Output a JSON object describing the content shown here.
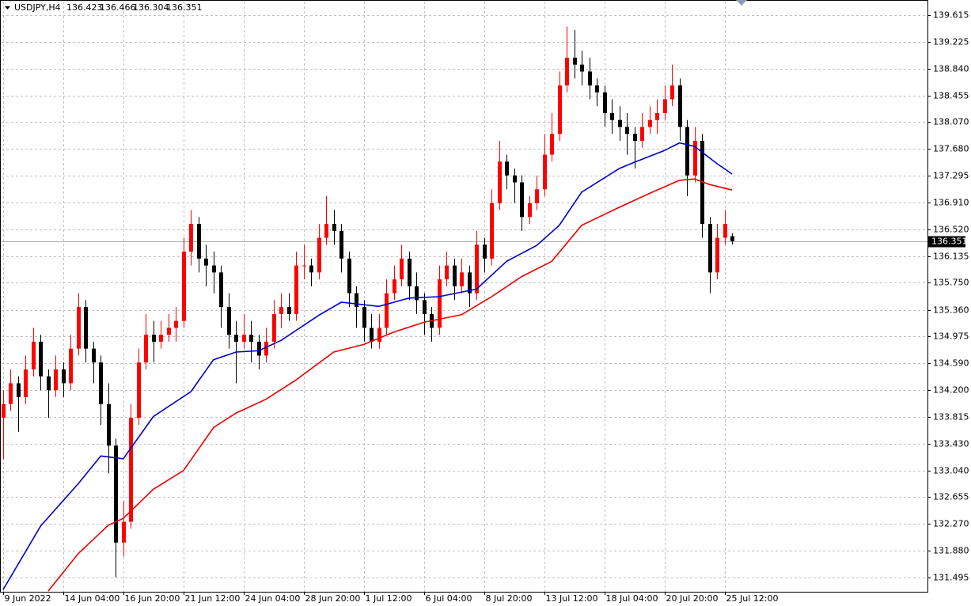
{
  "chart_data": {
    "type": "candlestick",
    "title": "USDJPY,H4",
    "up_color": "#ff0000",
    "down_color": "#000000",
    "grid": true,
    "xlim": [
      -0.2,
      123
    ],
    "ylim": [
      131.29,
      139.81
    ],
    "xticks": [
      {
        "value": 0,
        "label": "9 Jun 2022"
      },
      {
        "value": 8,
        "label": "14 Jun 04:00"
      },
      {
        "value": 16,
        "label": "16 Jun 20:00"
      },
      {
        "value": 24,
        "label": "21 Jun 12:00"
      },
      {
        "value": 32,
        "label": "24 Jun 04:00"
      },
      {
        "value": 40,
        "label": "28 Jun 20:00"
      },
      {
        "value": 48,
        "label": "1 Jul 12:00"
      },
      {
        "value": 56,
        "label": "6 Jul 04:00"
      },
      {
        "value": 64,
        "label": "8 Jul 20:00"
      },
      {
        "value": 72,
        "label": "13 Jul 12:00"
      },
      {
        "value": 80,
        "label": "18 Jul 04:00"
      },
      {
        "value": 88,
        "label": "20 Jul 20:00"
      },
      {
        "value": 96,
        "label": "25 Jul 12:00"
      }
    ],
    "yticks": [
      131.495,
      {
        "value": 131.88,
        "label": "131.880"
      },
      {
        "value": 132.27,
        "label": "132.270"
      },
      132.655,
      {
        "value": 133.04,
        "label": "133.040"
      },
      {
        "value": 133.43,
        "label": "133.430"
      },
      133.815,
      {
        "value": 134.2,
        "label": "134.200"
      },
      {
        "value": 134.59,
        "label": "134.590"
      },
      134.975,
      {
        "value": 135.36,
        "label": "135.360"
      },
      {
        "value": 135.75,
        "label": "135.750"
      },
      136.135,
      {
        "value": 136.52,
        "label": "136.520"
      },
      {
        "value": 136.91,
        "label": "136.910"
      },
      137.295,
      {
        "value": 137.68,
        "label": "137.680"
      },
      {
        "value": 138.07,
        "label": "138.070"
      },
      138.455,
      {
        "value": 138.84,
        "label": "138.840"
      },
      139.225,
      139.615
    ],
    "open": [
      133.8,
      134.0,
      134.3,
      134.1,
      134.5,
      134.9,
      134.4,
      134.2,
      134.5,
      134.3,
      134.8,
      135.4,
      134.8,
      134.6,
      134.0,
      133.4,
      132.0,
      132.3,
      133.8,
      134.6,
      135.0,
      134.9,
      135.0,
      135.1,
      135.2,
      136.2,
      136.6,
      136.1,
      136.0,
      135.9,
      135.4,
      135.0,
      134.9,
      135.0,
      134.9,
      134.7,
      134.9,
      135.3,
      135.4,
      135.3,
      136.0,
      136.0,
      135.9,
      136.4,
      136.6,
      136.5,
      136.1,
      135.6,
      135.4,
      135.1,
      134.9,
      135.1,
      135.6,
      135.8,
      136.1,
      135.7,
      135.5,
      135.3,
      135.1,
      135.8,
      136.0,
      135.7,
      135.9,
      135.6,
      136.3,
      136.1,
      136.9,
      137.5,
      137.3,
      137.2,
      136.7,
      136.9,
      137.1,
      137.6,
      137.9,
      138.6,
      139.0,
      138.9,
      138.8,
      138.6,
      138.5,
      138.2,
      138.1,
      138.0,
      137.9,
      137.8,
      138.0,
      138.1,
      138.2,
      138.4,
      138.6,
      138.0,
      137.3,
      137.8,
      136.6,
      135.9,
      136.4,
      136.423
    ],
    "high": [
      134.2,
      134.5,
      134.4,
      134.7,
      135.1,
      135.0,
      134.5,
      134.7,
      134.6,
      135.0,
      135.6,
      135.5,
      134.9,
      134.7,
      134.3,
      133.5,
      132.6,
      134.0,
      134.8,
      135.3,
      135.2,
      135.2,
      135.3,
      135.4,
      136.4,
      136.8,
      136.7,
      136.3,
      136.2,
      136.0,
      135.6,
      135.2,
      135.3,
      135.2,
      135.0,
      135.1,
      135.5,
      135.6,
      135.6,
      136.2,
      136.3,
      136.1,
      136.6,
      137.0,
      136.8,
      136.6,
      136.2,
      135.7,
      135.5,
      135.3,
      135.3,
      135.8,
      136.0,
      136.3,
      136.2,
      135.9,
      135.6,
      135.4,
      136.0,
      136.2,
      136.1,
      136.1,
      136.0,
      136.5,
      136.4,
      137.1,
      137.8,
      137.6,
      137.4,
      137.3,
      137.0,
      137.3,
      137.9,
      138.2,
      138.8,
      139.45,
      139.4,
      139.1,
      139.0,
      138.7,
      138.6,
      138.4,
      138.3,
      138.2,
      138.0,
      138.2,
      138.3,
      138.4,
      138.6,
      138.9,
      138.7,
      138.1,
      138.0,
      137.9,
      136.7,
      136.6,
      136.8,
      136.466
    ],
    "low": [
      133.2,
      133.9,
      133.6,
      134.0,
      134.4,
      134.2,
      133.8,
      134.1,
      134.1,
      134.2,
      134.7,
      134.6,
      134.3,
      133.7,
      133.0,
      131.5,
      131.8,
      132.2,
      133.7,
      134.5,
      134.6,
      134.8,
      134.9,
      134.9,
      135.1,
      136.0,
      135.9,
      135.7,
      135.6,
      135.1,
      134.8,
      134.3,
      134.8,
      134.6,
      134.5,
      134.6,
      134.8,
      135.1,
      135.2,
      135.2,
      135.8,
      135.7,
      135.8,
      136.3,
      136.3,
      135.9,
      135.4,
      135.1,
      134.9,
      134.8,
      134.8,
      135.0,
      135.5,
      135.7,
      135.5,
      135.3,
      135.0,
      134.9,
      135.0,
      135.7,
      135.5,
      135.6,
      135.4,
      135.5,
      135.9,
      136.0,
      136.8,
      137.1,
      136.9,
      136.5,
      136.6,
      136.8,
      137.0,
      137.5,
      137.8,
      138.5,
      138.7,
      138.6,
      138.4,
      138.3,
      138.0,
      137.9,
      137.8,
      137.6,
      137.4,
      137.7,
      137.9,
      137.9,
      138.1,
      138.3,
      137.8,
      137.0,
      137.2,
      136.4,
      135.6,
      135.8,
      136.3,
      136.304
    ],
    "close": [
      134.0,
      134.3,
      134.1,
      134.5,
      134.9,
      134.4,
      134.2,
      134.5,
      134.3,
      134.8,
      135.4,
      134.8,
      134.6,
      134.0,
      133.4,
      132.0,
      132.3,
      133.8,
      134.6,
      135.0,
      134.9,
      135.0,
      135.1,
      135.2,
      136.2,
      136.6,
      136.1,
      136.0,
      135.9,
      135.4,
      135.0,
      134.9,
      135.0,
      134.9,
      134.7,
      134.9,
      135.3,
      135.4,
      135.3,
      136.0,
      136.0,
      135.9,
      136.4,
      136.6,
      136.5,
      136.1,
      135.6,
      135.4,
      135.1,
      134.9,
      135.1,
      135.6,
      135.8,
      136.1,
      135.7,
      135.5,
      135.3,
      135.1,
      135.8,
      136.0,
      135.7,
      135.9,
      135.6,
      136.3,
      136.1,
      136.9,
      137.5,
      137.3,
      137.2,
      136.7,
      136.9,
      137.1,
      137.6,
      137.9,
      138.6,
      139.0,
      138.9,
      138.8,
      138.6,
      138.5,
      138.2,
      138.1,
      138.0,
      137.9,
      137.8,
      138.0,
      138.1,
      138.2,
      138.4,
      138.6,
      138.0,
      137.3,
      137.8,
      136.6,
      135.9,
      136.4,
      136.6,
      136.351
    ],
    "series": [
      {
        "color": "#0000cc",
        "x": [
          0,
          5,
          10,
          13,
          16,
          20,
          25,
          28,
          31,
          34,
          37,
          42,
          45,
          50,
          54,
          58,
          63,
          67,
          71,
          74,
          77,
          82,
          84,
          88,
          90,
          92,
          95,
          97
        ],
        "values": [
          131.32,
          132.24,
          132.85,
          133.25,
          133.21,
          133.82,
          134.18,
          134.64,
          134.75,
          134.77,
          134.92,
          135.28,
          135.47,
          135.41,
          135.53,
          135.55,
          135.66,
          136.06,
          136.29,
          136.58,
          137.06,
          137.4,
          137.49,
          137.66,
          137.77,
          137.72,
          137.47,
          137.32
        ]
      },
      {
        "color": "#ee0000",
        "x": [
          6,
          10,
          14,
          16,
          20,
          24,
          28,
          31,
          35,
          39,
          44,
          48,
          52,
          56,
          61,
          65,
          69,
          73,
          77,
          82,
          86,
          90,
          92,
          94,
          97
        ],
        "values": [
          131.3,
          131.84,
          132.25,
          132.35,
          132.77,
          133.04,
          133.66,
          133.87,
          134.07,
          134.35,
          134.75,
          134.86,
          135.04,
          135.18,
          135.29,
          135.55,
          135.84,
          136.06,
          136.58,
          136.84,
          137.04,
          137.23,
          137.25,
          137.17,
          137.09
        ]
      }
    ]
  }
}
